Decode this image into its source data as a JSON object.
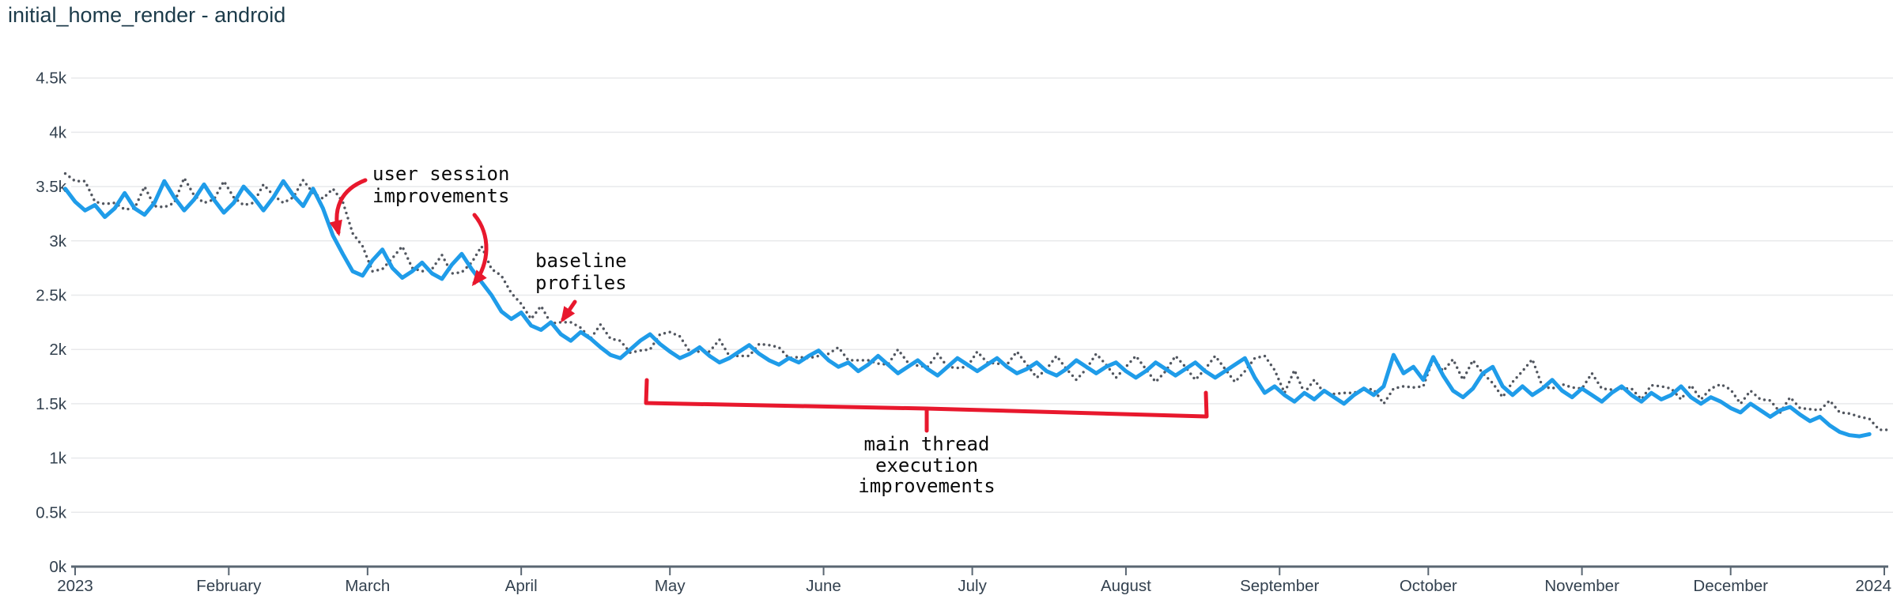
{
  "title": "initial_home_render - android",
  "colors": {
    "main_line": "#1f9ce9",
    "dotted_line": "#51565f",
    "annotation_red": "#e8182d",
    "grid": "#e8e9eb",
    "axis": "#5a6672",
    "axis_text": "#33414f",
    "title_text": "#1c3b4a"
  },
  "chart_data": {
    "type": "line",
    "title": "initial_home_render - android",
    "xlabel": "",
    "ylabel": "",
    "x_tick_labels": [
      "2023",
      "February",
      "March",
      "April",
      "May",
      "June",
      "July",
      "August",
      "September",
      "October",
      "November",
      "December",
      "2024"
    ],
    "x_tick_days": [
      0,
      31,
      59,
      90,
      120,
      151,
      181,
      212,
      243,
      273,
      304,
      334,
      365
    ],
    "y_tick_labels": [
      "0k",
      "0.5k",
      "1k",
      "1.5k",
      "2k",
      "2.5k",
      "3k",
      "3.5k",
      "4k",
      "4.5k"
    ],
    "y_tick_values": [
      0,
      500,
      1000,
      1500,
      2000,
      2500,
      3000,
      3500,
      4000,
      4500
    ],
    "ylim": [
      0,
      4500
    ],
    "grid": "horizontal-only",
    "legend_position": "none",
    "sample_step_days": 2,
    "series": [
      {
        "name": "solid",
        "style": "solid",
        "color": "#1f9ce9",
        "values": [
          3480,
          3360,
          3280,
          3330,
          3220,
          3300,
          3440,
          3300,
          3240,
          3350,
          3550,
          3400,
          3280,
          3380,
          3520,
          3380,
          3260,
          3350,
          3500,
          3400,
          3280,
          3400,
          3550,
          3420,
          3320,
          3480,
          3300,
          3050,
          2880,
          2720,
          2680,
          2820,
          2920,
          2750,
          2660,
          2720,
          2800,
          2700,
          2650,
          2780,
          2880,
          2740,
          2620,
          2500,
          2350,
          2280,
          2340,
          2220,
          2180,
          2250,
          2140,
          2080,
          2160,
          2100,
          2020,
          1950,
          1920,
          2000,
          2080,
          2140,
          2050,
          1980,
          1920,
          1960,
          2020,
          1940,
          1880,
          1920,
          1980,
          2040,
          1960,
          1900,
          1860,
          1920,
          1880,
          1940,
          1990,
          1900,
          1840,
          1880,
          1800,
          1860,
          1940,
          1860,
          1780,
          1840,
          1900,
          1820,
          1760,
          1840,
          1920,
          1860,
          1800,
          1860,
          1920,
          1840,
          1780,
          1820,
          1880,
          1800,
          1760,
          1820,
          1900,
          1840,
          1780,
          1840,
          1880,
          1800,
          1740,
          1800,
          1880,
          1820,
          1760,
          1820,
          1880,
          1800,
          1740,
          1800,
          1860,
          1920,
          1740,
          1600,
          1660,
          1580,
          1520,
          1600,
          1540,
          1620,
          1560,
          1500,
          1580,
          1640,
          1580,
          1660,
          1950,
          1780,
          1840,
          1720,
          1930,
          1760,
          1620,
          1560,
          1640,
          1780,
          1840,
          1660,
          1580,
          1660,
          1580,
          1640,
          1720,
          1620,
          1560,
          1640,
          1580,
          1520,
          1600,
          1660,
          1580,
          1520,
          1600,
          1540,
          1580,
          1660,
          1560,
          1500,
          1560,
          1520,
          1460,
          1420,
          1500,
          1440,
          1380,
          1440,
          1470,
          1400,
          1340,
          1380,
          1300,
          1240,
          1210,
          1200,
          1220
        ]
      },
      {
        "name": "dotted",
        "style": "dotted",
        "color": "#51565f",
        "values": [
          3620,
          3550,
          3550,
          3360,
          3340,
          3350,
          3290,
          3300,
          3500,
          3320,
          3310,
          3350,
          3580,
          3420,
          3350,
          3380,
          3550,
          3400,
          3330,
          3350,
          3520,
          3420,
          3350,
          3400,
          3560,
          3440,
          3390,
          3480,
          3360,
          3070,
          2950,
          2720,
          2740,
          2840,
          2950,
          2750,
          2720,
          2740,
          2870,
          2700,
          2710,
          2800,
          2950,
          2740,
          2680,
          2520,
          2420,
          2280,
          2400,
          2240,
          2250,
          2250,
          2200,
          2100,
          2230,
          2100,
          2080,
          1970,
          1990,
          2000,
          2140,
          2160,
          2120,
          1980,
          1980,
          1980,
          2090,
          1940,
          1940,
          1940,
          2050,
          2040,
          2020,
          1920,
          1930,
          1920,
          1940,
          1960,
          2020,
          1900,
          1900,
          1900,
          1870,
          1860,
          2000,
          1880,
          1850,
          1840,
          1960,
          1840,
          1830,
          1840,
          1980,
          1880,
          1870,
          1860,
          1980,
          1860,
          1740,
          1820,
          1940,
          1820,
          1720,
          1820,
          1960,
          1860,
          1740,
          1840,
          1940,
          1820,
          1700,
          1800,
          1940,
          1840,
          1720,
          1820,
          1940,
          1820,
          1700,
          1800,
          1920,
          1940,
          1810,
          1600,
          1810,
          1600,
          1720,
          1600,
          1590,
          1600,
          1600,
          1640,
          1630,
          1500,
          1640,
          1660,
          1650,
          1660,
          1920,
          1800,
          1910,
          1720,
          1900,
          1780,
          1690,
          1560,
          1700,
          1800,
          1910,
          1660,
          1640,
          1680,
          1650,
          1640,
          1780,
          1640,
          1630,
          1640,
          1640,
          1540,
          1670,
          1660,
          1640,
          1540,
          1670,
          1540,
          1640,
          1680,
          1630,
          1500,
          1620,
          1540,
          1530,
          1420,
          1560,
          1460,
          1450,
          1440,
          1530,
          1420,
          1410,
          1380,
          1360,
          1260,
          1260
        ]
      }
    ],
    "annotations": [
      {
        "id": "user-session-improvements",
        "lines": [
          "user session",
          "improvements"
        ]
      },
      {
        "id": "baseline-profiles",
        "lines": [
          "baseline",
          "profiles"
        ]
      },
      {
        "id": "main-thread-execution-improvements",
        "lines": [
          "main thread",
          "execution",
          "improvements"
        ]
      }
    ]
  }
}
